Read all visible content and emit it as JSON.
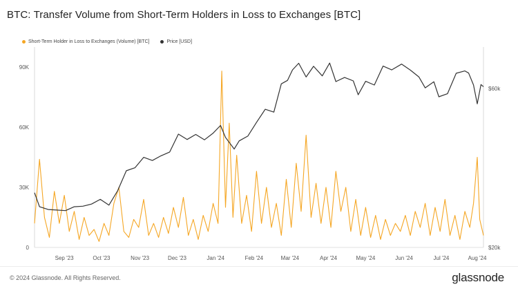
{
  "chart_data": {
    "type": "line",
    "title": "BTC: Transfer Volume from Short-Term Holders in Loss to Exchanges [BTC]",
    "x_ticks": [
      "Sep '23",
      "Oct '23",
      "Nov '23",
      "Dec '23",
      "Jan '24",
      "Feb '24",
      "Mar '24",
      "Apr '24",
      "May '24",
      "Jun '24",
      "Jul '24",
      "Aug '24"
    ],
    "x_range": [
      "2023-08-14",
      "2024-08-10"
    ],
    "y_left": {
      "ticks": [
        "0",
        "30K",
        "60K",
        "90K"
      ],
      "range": [
        0,
        100000
      ]
    },
    "y_right": {
      "ticks": [
        "$20k",
        "$60k"
      ],
      "range": [
        20000,
        80000
      ],
      "scale": "log"
    },
    "legend": {
      "placement": "top-left"
    },
    "series": [
      {
        "name": "Short-Term Holder in Loss to Exchanges (Volume) [BTC]",
        "axis": "left",
        "color": "#f5a623",
        "points": [
          [
            "2023-08-14",
            12000
          ],
          [
            "2023-08-18",
            44000
          ],
          [
            "2023-08-22",
            15000
          ],
          [
            "2023-08-26",
            5000
          ],
          [
            "2023-08-30",
            28000
          ],
          [
            "2023-09-03",
            12000
          ],
          [
            "2023-09-07",
            26000
          ],
          [
            "2023-09-11",
            8000
          ],
          [
            "2023-09-15",
            18000
          ],
          [
            "2023-09-19",
            4000
          ],
          [
            "2023-09-23",
            15000
          ],
          [
            "2023-09-27",
            6000
          ],
          [
            "2023-10-01",
            9000
          ],
          [
            "2023-10-05",
            3000
          ],
          [
            "2023-10-09",
            12000
          ],
          [
            "2023-10-13",
            6000
          ],
          [
            "2023-10-17",
            22000
          ],
          [
            "2023-10-21",
            30000
          ],
          [
            "2023-10-25",
            8000
          ],
          [
            "2023-10-29",
            5000
          ],
          [
            "2023-11-02",
            14000
          ],
          [
            "2023-11-06",
            10000
          ],
          [
            "2023-11-10",
            24000
          ],
          [
            "2023-11-14",
            6000
          ],
          [
            "2023-11-18",
            12000
          ],
          [
            "2023-11-22",
            5000
          ],
          [
            "2023-11-26",
            15000
          ],
          [
            "2023-11-30",
            7000
          ],
          [
            "2023-12-04",
            20000
          ],
          [
            "2023-12-08",
            10000
          ],
          [
            "2023-12-12",
            25000
          ],
          [
            "2023-12-16",
            6000
          ],
          [
            "2023-12-20",
            14000
          ],
          [
            "2023-12-24",
            4000
          ],
          [
            "2023-12-28",
            16000
          ],
          [
            "2024-01-01",
            8000
          ],
          [
            "2024-01-05",
            22000
          ],
          [
            "2024-01-09",
            12000
          ],
          [
            "2024-01-12",
            88000
          ],
          [
            "2024-01-15",
            20000
          ],
          [
            "2024-01-18",
            62000
          ],
          [
            "2024-01-21",
            15000
          ],
          [
            "2024-01-24",
            46000
          ],
          [
            "2024-01-28",
            12000
          ],
          [
            "2024-02-01",
            26000
          ],
          [
            "2024-02-05",
            8000
          ],
          [
            "2024-02-09",
            38000
          ],
          [
            "2024-02-13",
            12000
          ],
          [
            "2024-02-17",
            30000
          ],
          [
            "2024-02-21",
            10000
          ],
          [
            "2024-02-25",
            22000
          ],
          [
            "2024-02-29",
            6000
          ],
          [
            "2024-03-04",
            34000
          ],
          [
            "2024-03-08",
            10000
          ],
          [
            "2024-03-12",
            42000
          ],
          [
            "2024-03-16",
            18000
          ],
          [
            "2024-03-20",
            56000
          ],
          [
            "2024-03-24",
            15000
          ],
          [
            "2024-03-28",
            32000
          ],
          [
            "2024-04-01",
            12000
          ],
          [
            "2024-04-05",
            30000
          ],
          [
            "2024-04-09",
            10000
          ],
          [
            "2024-04-13",
            38000
          ],
          [
            "2024-04-17",
            18000
          ],
          [
            "2024-04-21",
            30000
          ],
          [
            "2024-04-25",
            8000
          ],
          [
            "2024-04-29",
            24000
          ],
          [
            "2024-05-03",
            6000
          ],
          [
            "2024-05-07",
            20000
          ],
          [
            "2024-05-11",
            5000
          ],
          [
            "2024-05-15",
            16000
          ],
          [
            "2024-05-19",
            4000
          ],
          [
            "2024-05-23",
            14000
          ],
          [
            "2024-05-27",
            6000
          ],
          [
            "2024-05-31",
            12000
          ],
          [
            "2024-06-04",
            8000
          ],
          [
            "2024-06-08",
            16000
          ],
          [
            "2024-06-12",
            6000
          ],
          [
            "2024-06-16",
            18000
          ],
          [
            "2024-06-20",
            10000
          ],
          [
            "2024-06-24",
            22000
          ],
          [
            "2024-06-28",
            6000
          ],
          [
            "2024-07-02",
            20000
          ],
          [
            "2024-07-06",
            8000
          ],
          [
            "2024-07-10",
            24000
          ],
          [
            "2024-07-14",
            6000
          ],
          [
            "2024-07-18",
            16000
          ],
          [
            "2024-07-22",
            4000
          ],
          [
            "2024-07-26",
            18000
          ],
          [
            "2024-07-30",
            10000
          ],
          [
            "2024-08-02",
            22000
          ],
          [
            "2024-08-05",
            45000
          ],
          [
            "2024-08-07",
            14000
          ],
          [
            "2024-08-10",
            6000
          ]
        ]
      },
      {
        "name": "Price [USD]",
        "axis": "right",
        "color": "#333333",
        "points": [
          [
            "2023-08-14",
            29200
          ],
          [
            "2023-08-18",
            26500
          ],
          [
            "2023-08-25",
            26000
          ],
          [
            "2023-09-01",
            25900
          ],
          [
            "2023-09-08",
            25800
          ],
          [
            "2023-09-15",
            26500
          ],
          [
            "2023-09-22",
            26600
          ],
          [
            "2023-09-29",
            27000
          ],
          [
            "2023-10-06",
            27900
          ],
          [
            "2023-10-13",
            26800
          ],
          [
            "2023-10-20",
            29600
          ],
          [
            "2023-10-27",
            34000
          ],
          [
            "2023-11-03",
            34700
          ],
          [
            "2023-11-10",
            37300
          ],
          [
            "2023-11-17",
            36500
          ],
          [
            "2023-11-24",
            37700
          ],
          [
            "2023-12-01",
            38700
          ],
          [
            "2023-12-08",
            43800
          ],
          [
            "2023-12-15",
            42200
          ],
          [
            "2023-12-22",
            43700
          ],
          [
            "2023-12-29",
            42100
          ],
          [
            "2024-01-05",
            44100
          ],
          [
            "2024-01-11",
            46500
          ],
          [
            "2024-01-15",
            42800
          ],
          [
            "2024-01-22",
            39500
          ],
          [
            "2024-01-26",
            41800
          ],
          [
            "2024-02-02",
            43200
          ],
          [
            "2024-02-09",
            47500
          ],
          [
            "2024-02-16",
            52000
          ],
          [
            "2024-02-23",
            51000
          ],
          [
            "2024-02-29",
            62000
          ],
          [
            "2024-03-05",
            63500
          ],
          [
            "2024-03-09",
            68300
          ],
          [
            "2024-03-14",
            71500
          ],
          [
            "2024-03-20",
            65000
          ],
          [
            "2024-03-26",
            70000
          ],
          [
            "2024-04-02",
            65500
          ],
          [
            "2024-04-08",
            71600
          ],
          [
            "2024-04-13",
            63000
          ],
          [
            "2024-04-20",
            64800
          ],
          [
            "2024-04-27",
            63300
          ],
          [
            "2024-05-01",
            57500
          ],
          [
            "2024-05-07",
            63100
          ],
          [
            "2024-05-14",
            61500
          ],
          [
            "2024-05-21",
            70100
          ],
          [
            "2024-05-28",
            68300
          ],
          [
            "2024-06-05",
            71100
          ],
          [
            "2024-06-12",
            68200
          ],
          [
            "2024-06-19",
            65000
          ],
          [
            "2024-06-24",
            60300
          ],
          [
            "2024-07-01",
            62900
          ],
          [
            "2024-07-05",
            56700
          ],
          [
            "2024-07-12",
            57900
          ],
          [
            "2024-07-19",
            66700
          ],
          [
            "2024-07-26",
            67800
          ],
          [
            "2024-07-29",
            66800
          ],
          [
            "2024-08-02",
            61500
          ],
          [
            "2024-08-05",
            54000
          ],
          [
            "2024-08-08",
            61700
          ],
          [
            "2024-08-10",
            60800
          ]
        ]
      }
    ]
  },
  "footer": {
    "copyright": "© 2024 Glassnode. All Rights Reserved.",
    "logo": "glassnode"
  }
}
